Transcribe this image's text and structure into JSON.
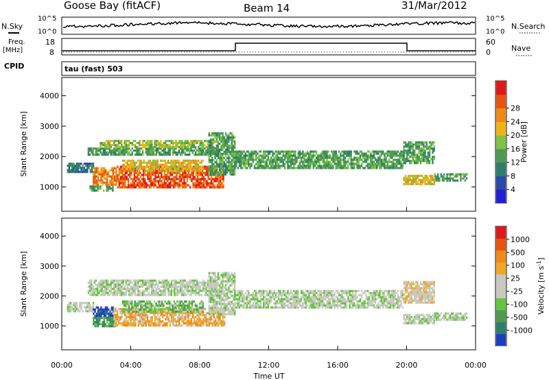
{
  "header": {
    "station": "Goose Bay (fitACF)",
    "beam": "Beam 14",
    "date": "31/Mar/2012"
  },
  "status_panels": {
    "nsky_label": "N.Sky",
    "nsearch_label": "N.Search",
    "noise_ticks": [
      "10^5",
      "10^0"
    ],
    "freq_label": "Freq.",
    "freq_unit": "[MHz]",
    "freq_ticks": [
      "18",
      "8"
    ],
    "nave_label": "Nave",
    "nave_ticks": [
      "60",
      "0"
    ],
    "cpid_label": "CPID",
    "cpid_value": "tau (fast) 503"
  },
  "chart_data": [
    {
      "type": "heatmap",
      "name": "power",
      "ylabel": "Slant Range [km]",
      "xlabel": "Time UT",
      "xlim": [
        0,
        24
      ],
      "ylim": [
        200,
        4600
      ],
      "xticks": [
        "00:00",
        "04:00",
        "08:00",
        "12:00",
        "16:00",
        "20:00",
        "00:00"
      ],
      "yticks": [
        1000,
        2000,
        3000,
        4000
      ],
      "colorbar": {
        "label": "Power [dB]",
        "ticks": [
          "4",
          "8",
          "12",
          "16",
          "20",
          "24",
          "28"
        ],
        "colors": [
          "#1f1fd9",
          "#2a49a8",
          "#2f7d6e",
          "#4e9a52",
          "#7cc443",
          "#f2b318",
          "#f08a14",
          "#e9530e",
          "#e01818"
        ]
      },
      "regions": [
        {
          "t0": 0.3,
          "t1": 1.8,
          "r0": 1500,
          "r1": 1800,
          "level": 2
        },
        {
          "t0": 1.6,
          "t1": 3.0,
          "r0": 850,
          "r1": 1050,
          "level": 3
        },
        {
          "t0": 1.8,
          "t1": 3.2,
          "r0": 1100,
          "r1": 1650,
          "level": 6
        },
        {
          "t0": 3.2,
          "t1": 9.4,
          "r0": 1000,
          "r1": 1700,
          "level": 7
        },
        {
          "t0": 3.5,
          "t1": 8.2,
          "r0": 1500,
          "r1": 1900,
          "level": 5
        },
        {
          "t0": 1.5,
          "t1": 9.0,
          "r0": 2050,
          "r1": 2300,
          "level": 3
        },
        {
          "t0": 2.2,
          "t1": 8.8,
          "r0": 2300,
          "r1": 2550,
          "level": 4
        },
        {
          "t0": 8.5,
          "t1": 10.0,
          "r0": 1400,
          "r1": 2800,
          "level": 3
        },
        {
          "t0": 10.0,
          "t1": 19.8,
          "r0": 1600,
          "r1": 2200,
          "level": 3
        },
        {
          "t0": 19.8,
          "t1": 21.6,
          "r0": 1100,
          "r1": 1400,
          "level": 5
        },
        {
          "t0": 19.8,
          "t1": 21.6,
          "r0": 1800,
          "r1": 2500,
          "level": 3
        },
        {
          "t0": 21.6,
          "t1": 23.5,
          "r0": 1200,
          "r1": 1450,
          "level": 3
        }
      ]
    },
    {
      "type": "heatmap",
      "name": "velocity",
      "ylabel": "Slant Range [km]",
      "xlabel": "Time UT",
      "xlim": [
        0,
        24
      ],
      "ylim": [
        200,
        4600
      ],
      "xticks": [
        "00:00",
        "04:00",
        "08:00",
        "12:00",
        "16:00",
        "20:00",
        "00:00"
      ],
      "yticks": [
        1000,
        2000,
        3000,
        4000
      ],
      "colorbar": {
        "label": "Velocity [m s",
        "label_sup": "-1",
        "label_end": "]",
        "ticks": [
          "1000",
          "500",
          "100",
          "25",
          "-25",
          "-100",
          "-500",
          "-1000"
        ],
        "colors": [
          "#1f3dbf",
          "#2f7d6e",
          "#4e9a52",
          "#63c43d",
          "#c8c8c0",
          "#c8c8c0",
          "#f2a722",
          "#f08a14",
          "#e9530e",
          "#e01818"
        ]
      },
      "regions": [
        {
          "t0": 0.3,
          "t1": 1.8,
          "r0": 1500,
          "r1": 1800,
          "level": 4
        },
        {
          "t0": 1.8,
          "t1": 3.0,
          "r0": 1300,
          "r1": 1650,
          "level": 0
        },
        {
          "t0": 1.8,
          "t1": 3.2,
          "r0": 1000,
          "r1": 1300,
          "level": 2
        },
        {
          "t0": 3.0,
          "t1": 9.4,
          "r0": 1000,
          "r1": 1600,
          "level": 6
        },
        {
          "t0": 3.5,
          "t1": 8.2,
          "r0": 1500,
          "r1": 1850,
          "level": 3
        },
        {
          "t0": 1.5,
          "t1": 9.0,
          "r0": 2050,
          "r1": 2550,
          "level": 4
        },
        {
          "t0": 8.5,
          "t1": 10.0,
          "r0": 1400,
          "r1": 2800,
          "level": 4
        },
        {
          "t0": 10.0,
          "t1": 19.8,
          "r0": 1600,
          "r1": 2200,
          "level": 4
        },
        {
          "t0": 19.8,
          "t1": 21.6,
          "r0": 1100,
          "r1": 1400,
          "level": 4
        },
        {
          "t0": 19.8,
          "t1": 21.6,
          "r0": 1800,
          "r1": 2500,
          "level": 5
        },
        {
          "t0": 21.6,
          "t1": 23.5,
          "r0": 1200,
          "r1": 1450,
          "level": 4
        }
      ]
    }
  ],
  "colors": {
    "axis": "#000000"
  }
}
